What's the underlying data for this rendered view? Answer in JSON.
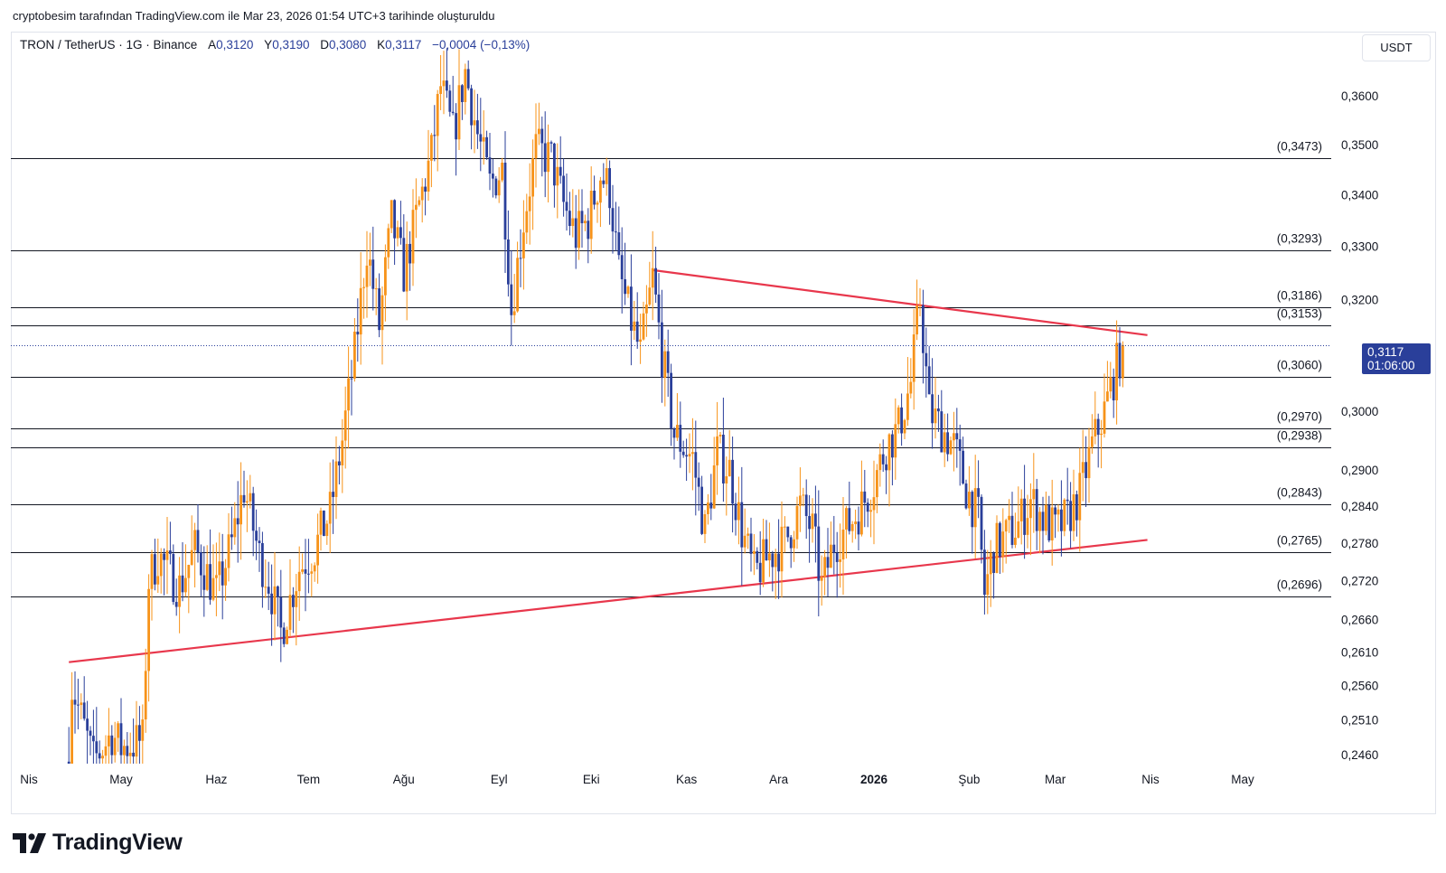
{
  "header": {
    "credit": "cryptobesim tarafından TradingView.com ile Mar 23, 2026 01:54 UTC+3 tarihinde oluşturuldu"
  },
  "legend": {
    "symbol": "TRON / TetherUS · 1G · Binance",
    "open_label": "A",
    "open": "0,3120",
    "high_label": "Y",
    "high": "0,3190",
    "low_label": "D",
    "low": "0,3080",
    "close_label": "K",
    "close": "0,3117",
    "change": "−0,0004 (−0,13%)"
  },
  "toolbar": {
    "currency": "USDT"
  },
  "price_badge": {
    "price": "0,3117",
    "countdown": "01:06:00"
  },
  "brand": {
    "name": "TradingView"
  },
  "colors": {
    "up": "#f7931a",
    "down": "#2a3f9a",
    "trendline": "#e8374c",
    "level": "#131722",
    "badge": "#2a3f9a"
  },
  "chart_data": {
    "type": "candlestick",
    "title": "TRON / TetherUS · 1G · Binance",
    "x_ticks": [
      {
        "label": "Nis",
        "date": "2025-04-01",
        "bold": false
      },
      {
        "label": "May",
        "date": "2025-05-01",
        "bold": false
      },
      {
        "label": "Haz",
        "date": "2025-06-01",
        "bold": false
      },
      {
        "label": "Tem",
        "date": "2025-07-01",
        "bold": false
      },
      {
        "label": "Ağu",
        "date": "2025-08-01",
        "bold": false
      },
      {
        "label": "Eyl",
        "date": "2025-09-01",
        "bold": false
      },
      {
        "label": "Eki",
        "date": "2025-10-01",
        "bold": false
      },
      {
        "label": "Kas",
        "date": "2025-11-01",
        "bold": false
      },
      {
        "label": "Ara",
        "date": "2025-12-01",
        "bold": false
      },
      {
        "label": "2026",
        "date": "2026-01-01",
        "bold": true
      },
      {
        "label": "Şub",
        "date": "2026-02-01",
        "bold": false
      },
      {
        "label": "Mar",
        "date": "2026-03-01",
        "bold": false
      },
      {
        "label": "Nis",
        "date": "2026-04-01",
        "bold": false
      },
      {
        "label": "May",
        "date": "2026-05-01",
        "bold": false
      }
    ],
    "y_ticks": [
      "0,3600",
      "0,3500",
      "0,3400",
      "0,3300",
      "0,3200",
      "0,3000",
      "0,2900",
      "0,2840",
      "0,2780",
      "0,2720",
      "0,2660",
      "0,2610",
      "0,2560",
      "0,2510",
      "0,2460"
    ],
    "y_scale": "log",
    "horizontal_levels": [
      {
        "label": "(0,3473)",
        "value": 0.3473
      },
      {
        "label": "(0,3293)",
        "value": 0.3293
      },
      {
        "label": "(0,3186)",
        "value": 0.3186
      },
      {
        "label": "(0,3153)",
        "value": 0.3153
      },
      {
        "label": "(0,3060)",
        "value": 0.306
      },
      {
        "label": "(0,2970)",
        "value": 0.297
      },
      {
        "label": "(0,2938)",
        "value": 0.2938
      },
      {
        "label": "(0,2843)",
        "value": 0.2843
      },
      {
        "label": "(0,2765)",
        "value": 0.2765
      },
      {
        "label": "(0,2696)",
        "value": 0.2696
      }
    ],
    "trendlines": [
      {
        "name": "resistance",
        "from": {
          "date": "2025-10-21",
          "price": 0.3255
        },
        "to": {
          "date": "2026-03-31",
          "price": 0.3135
        }
      },
      {
        "name": "support",
        "from": {
          "date": "2025-04-14",
          "price": 0.2595
        },
        "to": {
          "date": "2026-03-31",
          "price": 0.2785
        }
      }
    ],
    "current_price": 0.3117,
    "ohlc_path": [
      {
        "date": "2025-04-14",
        "price": 0.245
      },
      {
        "date": "2025-04-15",
        "price": 0.256
      },
      {
        "date": "2025-04-22",
        "price": 0.245
      },
      {
        "date": "2025-04-28",
        "price": 0.249
      },
      {
        "date": "2025-05-01",
        "price": 0.247
      },
      {
        "date": "2025-05-08",
        "price": 0.248
      },
      {
        "date": "2025-05-10",
        "price": 0.272
      },
      {
        "date": "2025-05-13",
        "price": 0.276
      },
      {
        "date": "2025-05-20",
        "price": 0.271
      },
      {
        "date": "2025-05-25",
        "price": 0.277
      },
      {
        "date": "2025-06-01",
        "price": 0.27
      },
      {
        "date": "2025-06-06",
        "price": 0.278
      },
      {
        "date": "2025-06-10",
        "price": 0.287
      },
      {
        "date": "2025-06-15",
        "price": 0.276
      },
      {
        "date": "2025-06-18",
        "price": 0.272
      },
      {
        "date": "2025-06-22",
        "price": 0.264
      },
      {
        "date": "2025-06-28",
        "price": 0.274
      },
      {
        "date": "2025-07-03",
        "price": 0.277
      },
      {
        "date": "2025-07-08",
        "price": 0.283
      },
      {
        "date": "2025-07-12",
        "price": 0.295
      },
      {
        "date": "2025-07-16",
        "price": 0.31
      },
      {
        "date": "2025-07-20",
        "price": 0.33
      },
      {
        "date": "2025-07-24",
        "price": 0.315
      },
      {
        "date": "2025-07-28",
        "price": 0.335
      },
      {
        "date": "2025-08-01",
        "price": 0.325
      },
      {
        "date": "2025-08-06",
        "price": 0.338
      },
      {
        "date": "2025-08-10",
        "price": 0.348
      },
      {
        "date": "2025-08-13",
        "price": 0.362
      },
      {
        "date": "2025-08-17",
        "price": 0.352
      },
      {
        "date": "2025-08-21",
        "price": 0.365
      },
      {
        "date": "2025-08-25",
        "price": 0.352
      },
      {
        "date": "2025-08-29",
        "price": 0.342
      },
      {
        "date": "2025-09-02",
        "price": 0.345
      },
      {
        "date": "2025-09-05",
        "price": 0.318
      },
      {
        "date": "2025-09-09",
        "price": 0.335
      },
      {
        "date": "2025-09-13",
        "price": 0.349
      },
      {
        "date": "2025-09-18",
        "price": 0.347
      },
      {
        "date": "2025-09-22",
        "price": 0.338
      },
      {
        "date": "2025-09-26",
        "price": 0.332
      },
      {
        "date": "2025-09-30",
        "price": 0.335
      },
      {
        "date": "2025-10-04",
        "price": 0.344
      },
      {
        "date": "2025-10-07",
        "price": 0.341
      },
      {
        "date": "2025-10-10",
        "price": 0.325
      },
      {
        "date": "2025-10-13",
        "price": 0.318
      },
      {
        "date": "2025-10-17",
        "price": 0.31
      },
      {
        "date": "2025-10-21",
        "price": 0.324
      },
      {
        "date": "2025-10-24",
        "price": 0.31
      },
      {
        "date": "2025-10-28",
        "price": 0.296
      },
      {
        "date": "2025-11-03",
        "price": 0.292
      },
      {
        "date": "2025-11-07",
        "price": 0.28
      },
      {
        "date": "2025-11-11",
        "price": 0.293
      },
      {
        "date": "2025-11-15",
        "price": 0.29
      },
      {
        "date": "2025-11-19",
        "price": 0.28
      },
      {
        "date": "2025-11-23",
        "price": 0.273
      },
      {
        "date": "2025-11-28",
        "price": 0.276
      },
      {
        "date": "2025-12-03",
        "price": 0.278
      },
      {
        "date": "2025-12-08",
        "price": 0.284
      },
      {
        "date": "2025-12-12",
        "price": 0.28
      },
      {
        "date": "2025-12-15",
        "price": 0.271
      },
      {
        "date": "2025-12-19",
        "price": 0.278
      },
      {
        "date": "2025-12-24",
        "price": 0.281
      },
      {
        "date": "2025-12-28",
        "price": 0.284
      },
      {
        "date": "2026-01-01",
        "price": 0.288
      },
      {
        "date": "2026-01-05",
        "price": 0.294
      },
      {
        "date": "2026-01-09",
        "price": 0.297
      },
      {
        "date": "2026-01-13",
        "price": 0.305
      },
      {
        "date": "2026-01-16",
        "price": 0.32
      },
      {
        "date": "2026-01-19",
        "price": 0.3
      },
      {
        "date": "2026-01-23",
        "price": 0.297
      },
      {
        "date": "2026-01-27",
        "price": 0.294
      },
      {
        "date": "2026-01-31",
        "price": 0.287
      },
      {
        "date": "2026-02-04",
        "price": 0.282
      },
      {
        "date": "2026-02-06",
        "price": 0.27
      },
      {
        "date": "2026-02-09",
        "price": 0.277
      },
      {
        "date": "2026-02-13",
        "price": 0.279
      },
      {
        "date": "2026-02-17",
        "price": 0.281
      },
      {
        "date": "2026-02-21",
        "price": 0.285
      },
      {
        "date": "2026-02-25",
        "price": 0.282
      },
      {
        "date": "2026-03-01",
        "price": 0.28
      },
      {
        "date": "2026-03-05",
        "price": 0.282
      },
      {
        "date": "2026-03-09",
        "price": 0.286
      },
      {
        "date": "2026-03-13",
        "price": 0.294
      },
      {
        "date": "2026-03-17",
        "price": 0.3
      },
      {
        "date": "2026-03-20",
        "price": 0.306
      },
      {
        "date": "2026-03-23",
        "price": 0.3117
      }
    ]
  }
}
